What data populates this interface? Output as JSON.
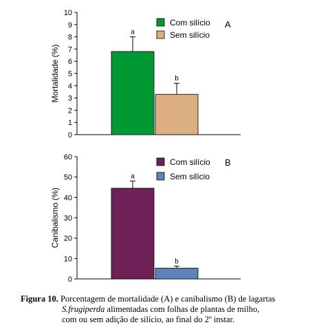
{
  "chart_data": [
    {
      "type": "bar",
      "panel_label": "A",
      "ylabel": "Mortalidade (%)",
      "ylim": [
        0,
        10
      ],
      "yticks": [
        0,
        1,
        2,
        3,
        4,
        5,
        6,
        7,
        8,
        9,
        10
      ],
      "categories": [
        "Com silício",
        "Sem silício"
      ],
      "values": [
        6.8,
        3.3
      ],
      "errors": [
        1.2,
        0.9
      ],
      "significance": [
        "a",
        "b"
      ],
      "colors": [
        "#009933",
        "#dcaf82"
      ],
      "legend": [
        "Com silício",
        "Sem silício"
      ],
      "legend_position": "top-right"
    },
    {
      "type": "bar",
      "panel_label": "B",
      "ylabel": "Canibalismo (%)",
      "ylim": [
        0,
        60
      ],
      "yticks": [
        0,
        10,
        20,
        30,
        40,
        50,
        60
      ],
      "categories": [
        "Com silício",
        "Sem silício"
      ],
      "values": [
        44.5,
        5.3
      ],
      "errors": [
        3.5,
        1.0
      ],
      "significance": [
        "a",
        "b"
      ],
      "colors": [
        "#6e2157",
        "#5b85b8"
      ],
      "legend": [
        "Com silício",
        "Sem silício"
      ],
      "legend_position": "top-right"
    }
  ],
  "caption": {
    "label": "Figura 10.",
    "line1_rest": " Porcentagem de mortalidade (A) e canibalismo (B) de lagartas",
    "line2_italic": "S.frugiperda",
    "line2_rest": " alimentadas com folhas de plantas de milho,",
    "line3": "com ou sem adição de silício, ao final do 2º instar."
  }
}
